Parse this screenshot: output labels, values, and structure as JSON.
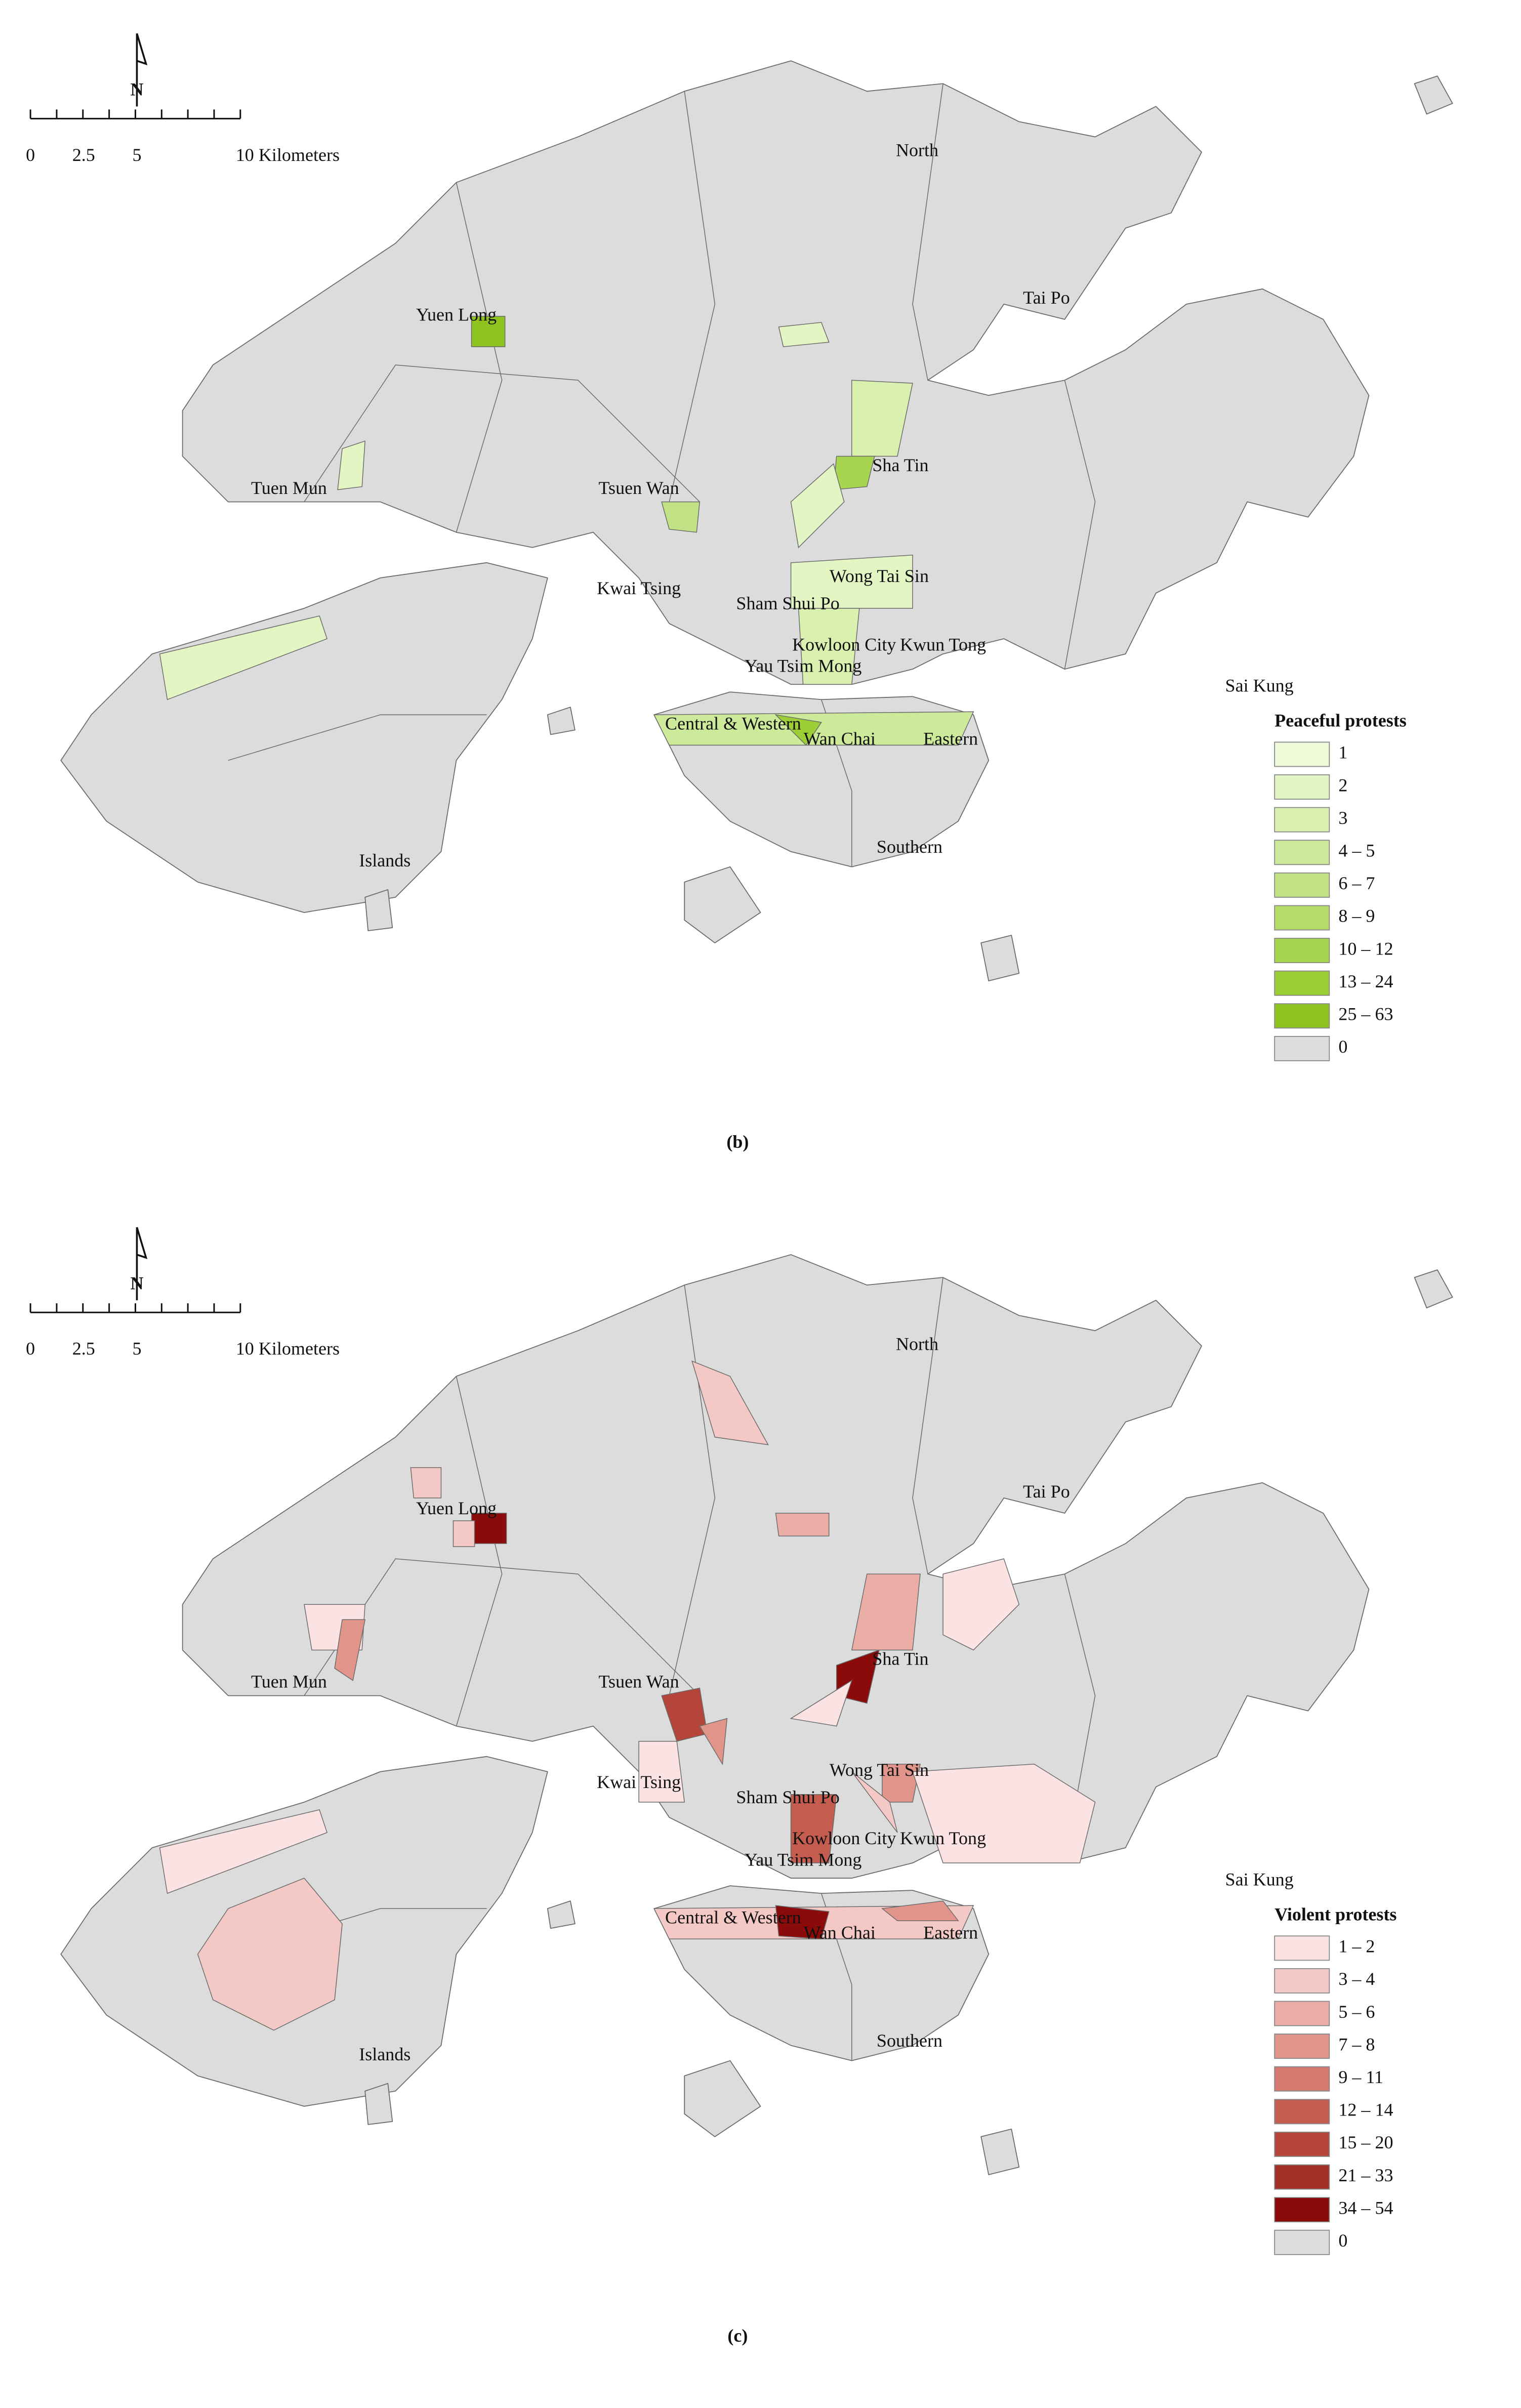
{
  "scale_bar": {
    "labels": [
      "0",
      "2.5",
      "5",
      "10 Kilometers"
    ]
  },
  "north_label": "N",
  "districts": [
    "North",
    "Tai Po",
    "Yuen Long",
    "Tuen Mun",
    "Tsuen Wan",
    "Sha Tin",
    "Kwai Tsing",
    "Wong Tai Sin",
    "Sham Shui Po",
    "Kowloon City",
    "Kwun Tong",
    "Yau Tsim Mong",
    "Sai Kung",
    "Central & Western",
    "Wan Chai",
    "Eastern",
    "Islands",
    "Southern"
  ],
  "land_color": "#dcdcdc",
  "panels": [
    {
      "label": "(b)",
      "legend": {
        "title": "Peaceful protests",
        "items": [
          {
            "label": "1",
            "color": "#eefad8"
          },
          {
            "label": "2",
            "color": "#e4f5c4"
          },
          {
            "label": "3",
            "color": "#d9f0ae"
          },
          {
            "label": "4 – 5",
            "color": "#cde99a"
          },
          {
            "label": "6 – 7",
            "color": "#c2e385"
          },
          {
            "label": "8 – 9",
            "color": "#b5dc6b"
          },
          {
            "label": "10 – 12",
            "color": "#a8d550"
          },
          {
            "label": "13 – 24",
            "color": "#9ccf36"
          },
          {
            "label": "25 – 63",
            "color": "#8fc31f"
          },
          {
            "label": "0",
            "color": "#dcdcdc"
          }
        ]
      }
    },
    {
      "label": "(c)",
      "legend": {
        "title": "Violent protests",
        "items": [
          {
            "label": "1 – 2",
            "color": "#fbe3e3"
          },
          {
            "label": "3 – 4",
            "color": "#f4c8c4"
          },
          {
            "label": "5 – 6",
            "color": "#eaaea6"
          },
          {
            "label": "7 – 8",
            "color": "#e0948a"
          },
          {
            "label": "9 – 11",
            "color": "#d4796e"
          },
          {
            "label": "12 – 14",
            "color": "#c45c50"
          },
          {
            "label": "15 – 20",
            "color": "#b5453a"
          },
          {
            "label": "21 – 33",
            "color": "#a33027"
          },
          {
            "label": "34 – 54",
            "color": "#8b0a0a"
          },
          {
            "label": "0",
            "color": "#dcdcdc"
          }
        ]
      }
    }
  ]
}
